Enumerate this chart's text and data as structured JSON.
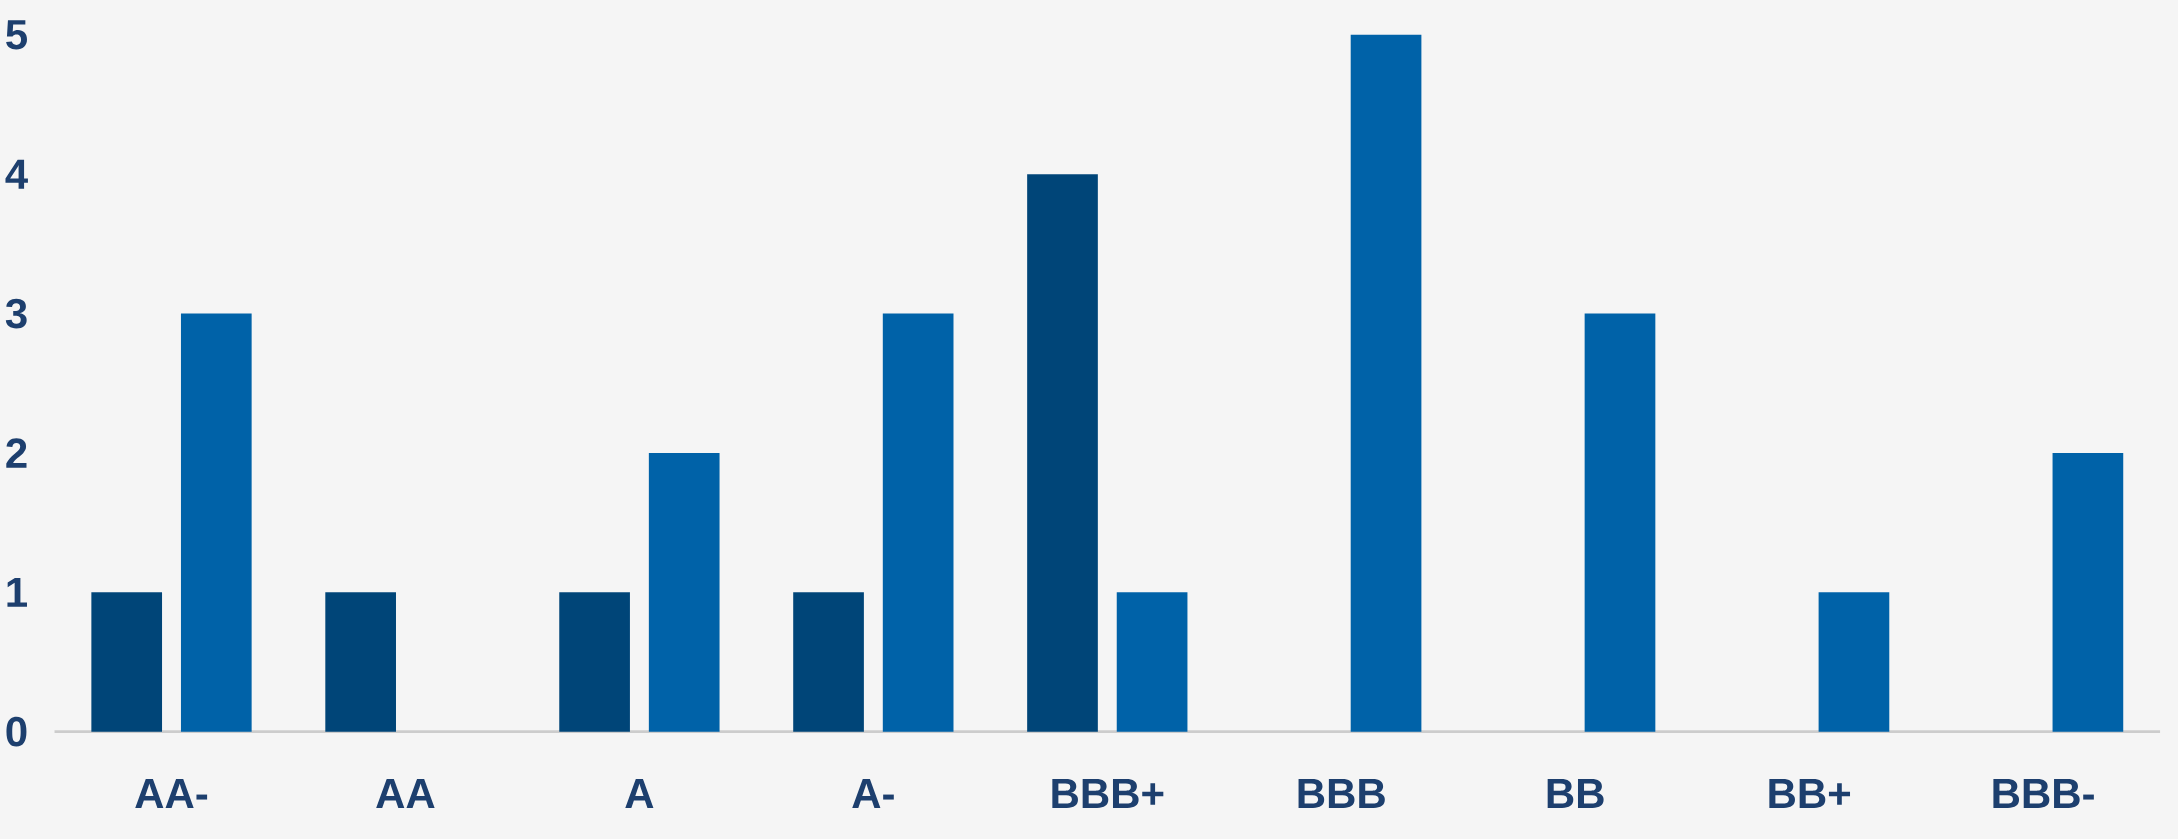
{
  "chart_data": {
    "type": "bar",
    "categories": [
      "AA-",
      "AA",
      "A",
      "A-",
      "BBB+",
      "BBB",
      "BB",
      "BB+",
      "BBB-"
    ],
    "series": [
      {
        "color": "#004578",
        "values": [
          1,
          1,
          1,
          1,
          4,
          null,
          null,
          null,
          null
        ]
      },
      {
        "color": "#0062a8",
        "values": [
          3,
          null,
          2,
          3,
          1,
          5,
          3,
          1,
          2
        ]
      }
    ],
    "ylim": [
      0,
      5
    ],
    "yticks": [
      0,
      1,
      2,
      3,
      4,
      5
    ]
  }
}
